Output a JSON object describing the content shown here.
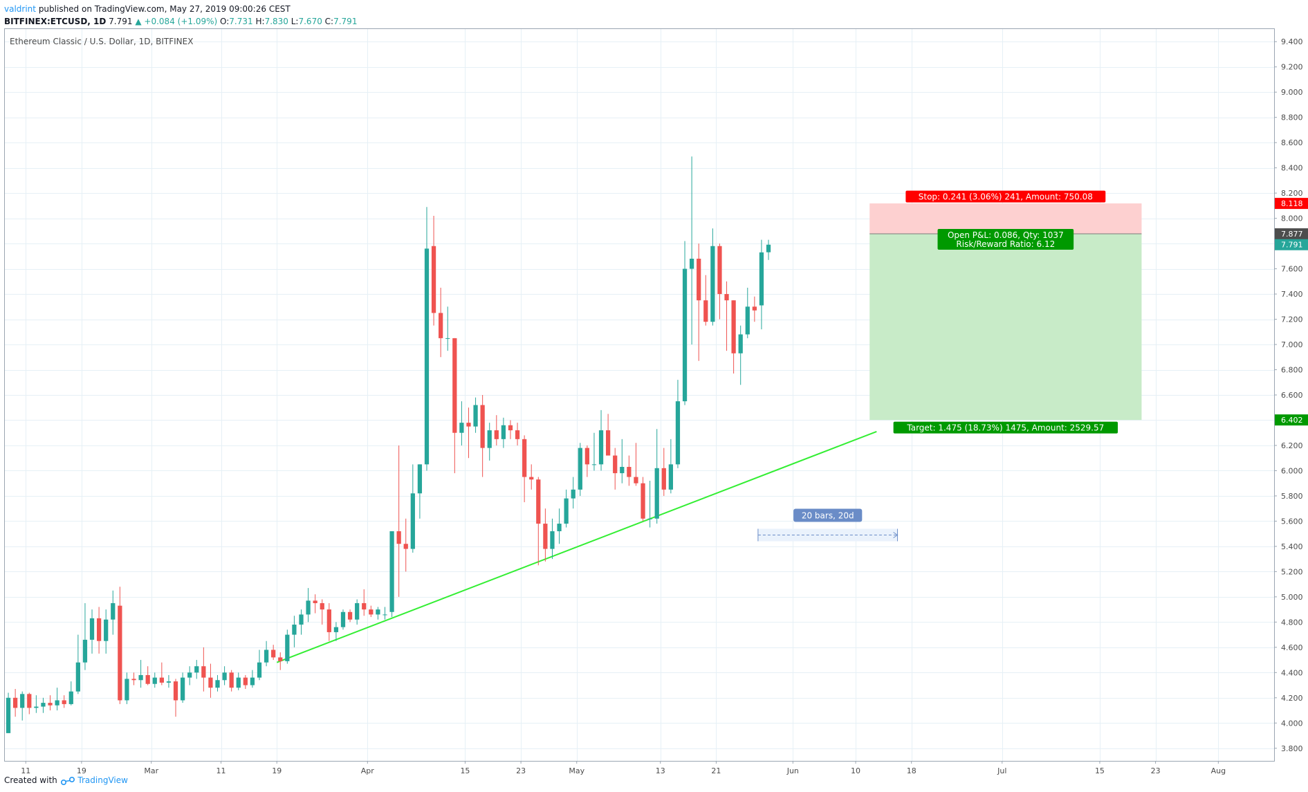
{
  "header": {
    "user": "valdrint",
    "published": "published on TradingView.com, May 27, 2019 09:00:26 CEST",
    "symbol": "BITFINEX:ETCUSD, 1D",
    "last": "7.791",
    "change": "+0.084 (+1.09%)",
    "ohlc": {
      "o_label": "O:",
      "o": "7.731",
      "h_label": "H:",
      "h": "7.830",
      "l_label": "L:",
      "l": "7.670",
      "c_label": "C:",
      "c": "7.791"
    }
  },
  "footer": {
    "created_with": "Created with",
    "brand": "TradingView"
  },
  "colors": {
    "up": "#26a69a",
    "down": "#ef5350",
    "trend": "#33ee33",
    "stop_zone": "#fdd0d0",
    "target_zone": "#c8ebc8",
    "grid": "#e6f0f6",
    "ruler": "#6a8cc7"
  },
  "chart_data": {
    "type": "candlestick",
    "title": "Ethereum Classic / U.S. Dollar, 1D, BITFINEX",
    "ylim": [
      3.7,
      9.5
    ],
    "y_ticks": [
      "3.800",
      "4.000",
      "4.200",
      "4.400",
      "4.600",
      "4.800",
      "5.000",
      "5.200",
      "5.400",
      "5.600",
      "5.800",
      "6.000",
      "6.200",
      "6.400",
      "6.600",
      "6.800",
      "7.000",
      "7.200",
      "7.400",
      "7.600",
      "7.800",
      "8.000",
      "8.200",
      "8.400",
      "8.600",
      "8.800",
      "9.000",
      "9.200",
      "9.400"
    ],
    "x_range": [
      "2019-02-08",
      "2019-08-09"
    ],
    "x_ticks": [
      {
        "date": "2019-02-11",
        "label": "11"
      },
      {
        "date": "2019-02-19",
        "label": "19"
      },
      {
        "date": "2019-03-01",
        "label": "Mar"
      },
      {
        "date": "2019-03-11",
        "label": "11"
      },
      {
        "date": "2019-03-19",
        "label": "19"
      },
      {
        "date": "2019-04-01",
        "label": "Apr"
      },
      {
        "date": "2019-04-15",
        "label": "15"
      },
      {
        "date": "2019-04-23",
        "label": "23"
      },
      {
        "date": "2019-05-01",
        "label": "May"
      },
      {
        "date": "2019-05-13",
        "label": "13"
      },
      {
        "date": "2019-05-21",
        "label": "21"
      },
      {
        "date": "2019-06-01",
        "label": "Jun"
      },
      {
        "date": "2019-06-10",
        "label": "10"
      },
      {
        "date": "2019-06-18",
        "label": "18"
      },
      {
        "date": "2019-07-01",
        "label": "Jul"
      },
      {
        "date": "2019-07-15",
        "label": "15"
      },
      {
        "date": "2019-07-23",
        "label": "23"
      },
      {
        "date": "2019-08-01",
        "label": "Aug"
      }
    ],
    "candles": [
      {
        "date": "2019-02-08",
        "o": 3.92,
        "h": 4.24,
        "l": 3.92,
        "c": 4.2
      },
      {
        "date": "2019-02-09",
        "o": 4.2,
        "h": 4.27,
        "l": 4.05,
        "c": 4.12
      },
      {
        "date": "2019-02-10",
        "o": 4.12,
        "h": 4.25,
        "l": 4.02,
        "c": 4.23
      },
      {
        "date": "2019-02-11",
        "o": 4.23,
        "h": 4.24,
        "l": 4.07,
        "c": 4.12
      },
      {
        "date": "2019-02-12",
        "o": 4.12,
        "h": 4.22,
        "l": 4.08,
        "c": 4.13
      },
      {
        "date": "2019-02-13",
        "o": 4.13,
        "h": 4.2,
        "l": 4.08,
        "c": 4.16
      },
      {
        "date": "2019-02-14",
        "o": 4.16,
        "h": 4.22,
        "l": 4.1,
        "c": 4.14
      },
      {
        "date": "2019-02-15",
        "o": 4.14,
        "h": 4.28,
        "l": 4.1,
        "c": 4.18
      },
      {
        "date": "2019-02-16",
        "o": 4.18,
        "h": 4.22,
        "l": 4.12,
        "c": 4.15
      },
      {
        "date": "2019-02-17",
        "o": 4.15,
        "h": 4.33,
        "l": 4.14,
        "c": 4.25
      },
      {
        "date": "2019-02-18",
        "o": 4.25,
        "h": 4.7,
        "l": 4.23,
        "c": 4.48
      },
      {
        "date": "2019-02-19",
        "o": 4.48,
        "h": 4.95,
        "l": 4.42,
        "c": 4.66
      },
      {
        "date": "2019-02-20",
        "o": 4.66,
        "h": 4.9,
        "l": 4.55,
        "c": 4.83
      },
      {
        "date": "2019-02-21",
        "o": 4.83,
        "h": 4.92,
        "l": 4.55,
        "c": 4.65
      },
      {
        "date": "2019-02-22",
        "o": 4.65,
        "h": 4.9,
        "l": 4.55,
        "c": 4.82
      },
      {
        "date": "2019-02-23",
        "o": 4.82,
        "h": 5.05,
        "l": 4.7,
        "c": 4.95
      },
      {
        "date": "2019-02-24",
        "o": 4.93,
        "h": 5.08,
        "l": 4.15,
        "c": 4.18
      },
      {
        "date": "2019-02-25",
        "o": 4.18,
        "h": 4.4,
        "l": 4.15,
        "c": 4.35
      },
      {
        "date": "2019-02-26",
        "o": 4.35,
        "h": 4.4,
        "l": 4.3,
        "c": 4.34
      },
      {
        "date": "2019-02-27",
        "o": 4.34,
        "h": 4.5,
        "l": 4.28,
        "c": 4.38
      },
      {
        "date": "2019-02-28",
        "o": 4.38,
        "h": 4.45,
        "l": 4.3,
        "c": 4.31
      },
      {
        "date": "2019-03-01",
        "o": 4.31,
        "h": 4.4,
        "l": 4.28,
        "c": 4.36
      },
      {
        "date": "2019-03-02",
        "o": 4.36,
        "h": 4.48,
        "l": 4.3,
        "c": 4.32
      },
      {
        "date": "2019-03-03",
        "o": 4.32,
        "h": 4.38,
        "l": 4.28,
        "c": 4.33
      },
      {
        "date": "2019-03-04",
        "o": 4.33,
        "h": 4.35,
        "l": 4.05,
        "c": 4.18
      },
      {
        "date": "2019-03-05",
        "o": 4.18,
        "h": 4.4,
        "l": 4.16,
        "c": 4.36
      },
      {
        "date": "2019-03-06",
        "o": 4.36,
        "h": 4.45,
        "l": 4.3,
        "c": 4.4
      },
      {
        "date": "2019-03-07",
        "o": 4.4,
        "h": 4.5,
        "l": 4.35,
        "c": 4.45
      },
      {
        "date": "2019-03-08",
        "o": 4.45,
        "h": 4.6,
        "l": 4.25,
        "c": 4.36
      },
      {
        "date": "2019-03-09",
        "o": 4.36,
        "h": 4.47,
        "l": 4.2,
        "c": 4.28
      },
      {
        "date": "2019-03-10",
        "o": 4.28,
        "h": 4.38,
        "l": 4.25,
        "c": 4.34
      },
      {
        "date": "2019-03-11",
        "o": 4.34,
        "h": 4.45,
        "l": 4.3,
        "c": 4.4
      },
      {
        "date": "2019-03-12",
        "o": 4.4,
        "h": 4.42,
        "l": 4.25,
        "c": 4.28
      },
      {
        "date": "2019-03-13",
        "o": 4.28,
        "h": 4.4,
        "l": 4.26,
        "c": 4.36
      },
      {
        "date": "2019-03-14",
        "o": 4.36,
        "h": 4.38,
        "l": 4.27,
        "c": 4.3
      },
      {
        "date": "2019-03-15",
        "o": 4.3,
        "h": 4.42,
        "l": 4.28,
        "c": 4.36
      },
      {
        "date": "2019-03-16",
        "o": 4.36,
        "h": 4.58,
        "l": 4.34,
        "c": 4.48
      },
      {
        "date": "2019-03-17",
        "o": 4.48,
        "h": 4.65,
        "l": 4.45,
        "c": 4.58
      },
      {
        "date": "2019-03-18",
        "o": 4.58,
        "h": 4.62,
        "l": 4.5,
        "c": 4.52
      },
      {
        "date": "2019-03-19",
        "o": 4.52,
        "h": 4.56,
        "l": 4.42,
        "c": 4.49
      },
      {
        "date": "2019-03-20",
        "o": 4.49,
        "h": 4.74,
        "l": 4.47,
        "c": 4.7
      },
      {
        "date": "2019-03-21",
        "o": 4.7,
        "h": 4.85,
        "l": 4.6,
        "c": 4.78
      },
      {
        "date": "2019-03-22",
        "o": 4.78,
        "h": 4.9,
        "l": 4.7,
        "c": 4.86
      },
      {
        "date": "2019-03-23",
        "o": 4.86,
        "h": 5.07,
        "l": 4.8,
        "c": 4.97
      },
      {
        "date": "2019-03-24",
        "o": 4.97,
        "h": 5.02,
        "l": 4.87,
        "c": 4.95
      },
      {
        "date": "2019-03-25",
        "o": 4.95,
        "h": 4.98,
        "l": 4.78,
        "c": 4.9
      },
      {
        "date": "2019-03-26",
        "o": 4.9,
        "h": 4.95,
        "l": 4.65,
        "c": 4.72
      },
      {
        "date": "2019-03-27",
        "o": 4.72,
        "h": 4.8,
        "l": 4.65,
        "c": 4.76
      },
      {
        "date": "2019-03-28",
        "o": 4.76,
        "h": 4.9,
        "l": 4.74,
        "c": 4.88
      },
      {
        "date": "2019-03-29",
        "o": 4.88,
        "h": 4.9,
        "l": 4.8,
        "c": 4.82
      },
      {
        "date": "2019-03-30",
        "o": 4.82,
        "h": 4.98,
        "l": 4.78,
        "c": 4.95
      },
      {
        "date": "2019-03-31",
        "o": 4.95,
        "h": 5.06,
        "l": 4.85,
        "c": 4.9
      },
      {
        "date": "2019-04-01",
        "o": 4.9,
        "h": 4.93,
        "l": 4.84,
        "c": 4.86
      },
      {
        "date": "2019-04-02",
        "o": 4.86,
        "h": 4.92,
        "l": 4.82,
        "c": 4.9
      },
      {
        "date": "2019-04-03",
        "o": 4.86,
        "h": 4.92,
        "l": 4.82,
        "c": 4.86
      },
      {
        "date": "2019-04-04",
        "o": 4.88,
        "h": 5.52,
        "l": 4.84,
        "c": 5.52
      },
      {
        "date": "2019-04-05",
        "o": 5.52,
        "h": 6.2,
        "l": 5.0,
        "c": 5.42
      },
      {
        "date": "2019-04-06",
        "o": 5.42,
        "h": 5.62,
        "l": 5.2,
        "c": 5.38
      },
      {
        "date": "2019-04-07",
        "o": 5.38,
        "h": 6.05,
        "l": 5.35,
        "c": 5.82
      },
      {
        "date": "2019-04-08",
        "o": 5.82,
        "h": 6.05,
        "l": 5.62,
        "c": 6.05
      },
      {
        "date": "2019-04-09",
        "o": 6.05,
        "h": 8.09,
        "l": 6.0,
        "c": 7.76
      },
      {
        "date": "2019-04-10",
        "o": 7.78,
        "h": 8.02,
        "l": 7.15,
        "c": 7.25
      },
      {
        "date": "2019-04-11",
        "o": 7.25,
        "h": 7.45,
        "l": 6.9,
        "c": 7.05
      },
      {
        "date": "2019-04-12",
        "o": 7.05,
        "h": 7.3,
        "l": 6.95,
        "c": 7.05
      },
      {
        "date": "2019-04-13",
        "o": 7.05,
        "h": 7.05,
        "l": 5.98,
        "c": 6.3
      },
      {
        "date": "2019-04-14",
        "o": 6.3,
        "h": 6.55,
        "l": 6.2,
        "c": 6.38
      },
      {
        "date": "2019-04-15",
        "o": 6.38,
        "h": 6.5,
        "l": 6.1,
        "c": 6.35
      },
      {
        "date": "2019-04-16",
        "o": 6.35,
        "h": 6.58,
        "l": 6.3,
        "c": 6.52
      },
      {
        "date": "2019-04-17",
        "o": 6.52,
        "h": 6.6,
        "l": 5.95,
        "c": 6.18
      },
      {
        "date": "2019-04-18",
        "o": 6.18,
        "h": 6.38,
        "l": 6.08,
        "c": 6.32
      },
      {
        "date": "2019-04-19",
        "o": 6.32,
        "h": 6.44,
        "l": 6.2,
        "c": 6.25
      },
      {
        "date": "2019-04-20",
        "o": 6.25,
        "h": 6.42,
        "l": 6.18,
        "c": 6.36
      },
      {
        "date": "2019-04-21",
        "o": 6.36,
        "h": 6.4,
        "l": 6.25,
        "c": 6.32
      },
      {
        "date": "2019-04-22",
        "o": 6.32,
        "h": 6.38,
        "l": 6.2,
        "c": 6.25
      },
      {
        "date": "2019-04-23",
        "o": 6.25,
        "h": 6.28,
        "l": 5.75,
        "c": 5.95
      },
      {
        "date": "2019-04-24",
        "o": 5.95,
        "h": 6.05,
        "l": 5.85,
        "c": 5.93
      },
      {
        "date": "2019-04-25",
        "o": 5.93,
        "h": 5.95,
        "l": 5.25,
        "c": 5.58
      },
      {
        "date": "2019-04-26",
        "o": 5.58,
        "h": 5.7,
        "l": 5.28,
        "c": 5.38
      },
      {
        "date": "2019-04-27",
        "o": 5.38,
        "h": 5.62,
        "l": 5.3,
        "c": 5.52
      },
      {
        "date": "2019-04-28",
        "o": 5.52,
        "h": 5.7,
        "l": 5.42,
        "c": 5.58
      },
      {
        "date": "2019-04-29",
        "o": 5.58,
        "h": 5.85,
        "l": 5.55,
        "c": 5.78
      },
      {
        "date": "2019-04-30",
        "o": 5.78,
        "h": 5.95,
        "l": 5.7,
        "c": 5.85
      },
      {
        "date": "2019-05-01",
        "o": 5.85,
        "h": 6.22,
        "l": 5.8,
        "c": 6.18
      },
      {
        "date": "2019-05-02",
        "o": 6.18,
        "h": 6.2,
        "l": 5.95,
        "c": 6.05
      },
      {
        "date": "2019-05-03",
        "o": 6.05,
        "h": 6.3,
        "l": 6.0,
        "c": 6.05
      },
      {
        "date": "2019-05-04",
        "o": 6.05,
        "h": 6.48,
        "l": 6.0,
        "c": 6.32
      },
      {
        "date": "2019-05-05",
        "o": 6.32,
        "h": 6.45,
        "l": 6.15,
        "c": 6.12
      },
      {
        "date": "2019-05-06",
        "o": 6.12,
        "h": 6.18,
        "l": 5.85,
        "c": 5.98
      },
      {
        "date": "2019-05-07",
        "o": 5.98,
        "h": 6.25,
        "l": 5.9,
        "c": 6.03
      },
      {
        "date": "2019-05-08",
        "o": 6.03,
        "h": 6.12,
        "l": 5.88,
        "c": 5.95
      },
      {
        "date": "2019-05-09",
        "o": 5.95,
        "h": 6.22,
        "l": 5.88,
        "c": 5.9
      },
      {
        "date": "2019-05-10",
        "o": 5.9,
        "h": 5.95,
        "l": 5.6,
        "c": 5.62
      },
      {
        "date": "2019-05-11",
        "o": 5.62,
        "h": 5.92,
        "l": 5.55,
        "c": 5.62
      },
      {
        "date": "2019-05-12",
        "o": 5.62,
        "h": 6.33,
        "l": 5.58,
        "c": 6.02
      },
      {
        "date": "2019-05-13",
        "o": 6.02,
        "h": 6.18,
        "l": 5.8,
        "c": 5.85
      },
      {
        "date": "2019-05-14",
        "o": 5.85,
        "h": 6.25,
        "l": 5.82,
        "c": 6.05
      },
      {
        "date": "2019-05-15",
        "o": 6.05,
        "h": 6.72,
        "l": 6.02,
        "c": 6.55
      },
      {
        "date": "2019-05-16",
        "o": 6.55,
        "h": 7.82,
        "l": 6.52,
        "c": 7.6
      },
      {
        "date": "2019-05-17",
        "o": 7.6,
        "h": 8.49,
        "l": 7.0,
        "c": 7.68
      },
      {
        "date": "2019-05-18",
        "o": 7.68,
        "h": 7.8,
        "l": 6.87,
        "c": 7.35
      },
      {
        "date": "2019-05-19",
        "o": 7.35,
        "h": 7.55,
        "l": 7.15,
        "c": 7.18
      },
      {
        "date": "2019-05-20",
        "o": 7.18,
        "h": 7.92,
        "l": 7.15,
        "c": 7.78
      },
      {
        "date": "2019-05-21",
        "o": 7.78,
        "h": 7.8,
        "l": 7.2,
        "c": 7.4
      },
      {
        "date": "2019-05-22",
        "o": 7.4,
        "h": 7.5,
        "l": 6.95,
        "c": 7.35
      },
      {
        "date": "2019-05-23",
        "o": 7.35,
        "h": 7.35,
        "l": 6.77,
        "c": 6.93
      },
      {
        "date": "2019-05-24",
        "o": 6.93,
        "h": 7.15,
        "l": 6.68,
        "c": 7.08
      },
      {
        "date": "2019-05-25",
        "o": 7.08,
        "h": 7.45,
        "l": 7.05,
        "c": 7.3
      },
      {
        "date": "2019-05-26",
        "o": 7.3,
        "h": 7.38,
        "l": 7.18,
        "c": 7.27
      },
      {
        "date": "2019-05-27",
        "o": 7.31,
        "h": 7.83,
        "l": 7.12,
        "c": 7.73
      },
      {
        "date": "2019-05-28",
        "o": 7.731,
        "h": 7.83,
        "l": 7.67,
        "c": 7.791
      }
    ],
    "trendline": {
      "start": {
        "date": "2019-03-19",
        "price": 4.48
      },
      "end": {
        "date": "2019-06-13",
        "price": 6.31
      }
    },
    "position": {
      "type": "long",
      "start_date": "2019-06-12",
      "end_date": "2019-07-21",
      "entry": 7.877,
      "stop": 8.118,
      "target": 6.402,
      "stop_label": "Stop: 0.241 (3.06%) 241, Amount: 750.08",
      "pnl_label": "Open P&L: 0.086, Qty: 1037",
      "rr_label": "Risk/Reward Ratio: 6.12",
      "target_label": "Target: 1.475 (18.73%) 1475, Amount: 2529.57"
    },
    "ruler": {
      "label": "20 bars, 20d",
      "start_date": "2019-05-27",
      "end_date": "2019-06-16",
      "price": 5.49
    },
    "price_tags": [
      {
        "value": "8.118",
        "color": "#ff0000"
      },
      {
        "value": "7.877",
        "color": "#4d4d4d"
      },
      {
        "value": "7.791",
        "color": "#26a69a"
      },
      {
        "value": "6.402",
        "color": "#009900"
      }
    ]
  }
}
